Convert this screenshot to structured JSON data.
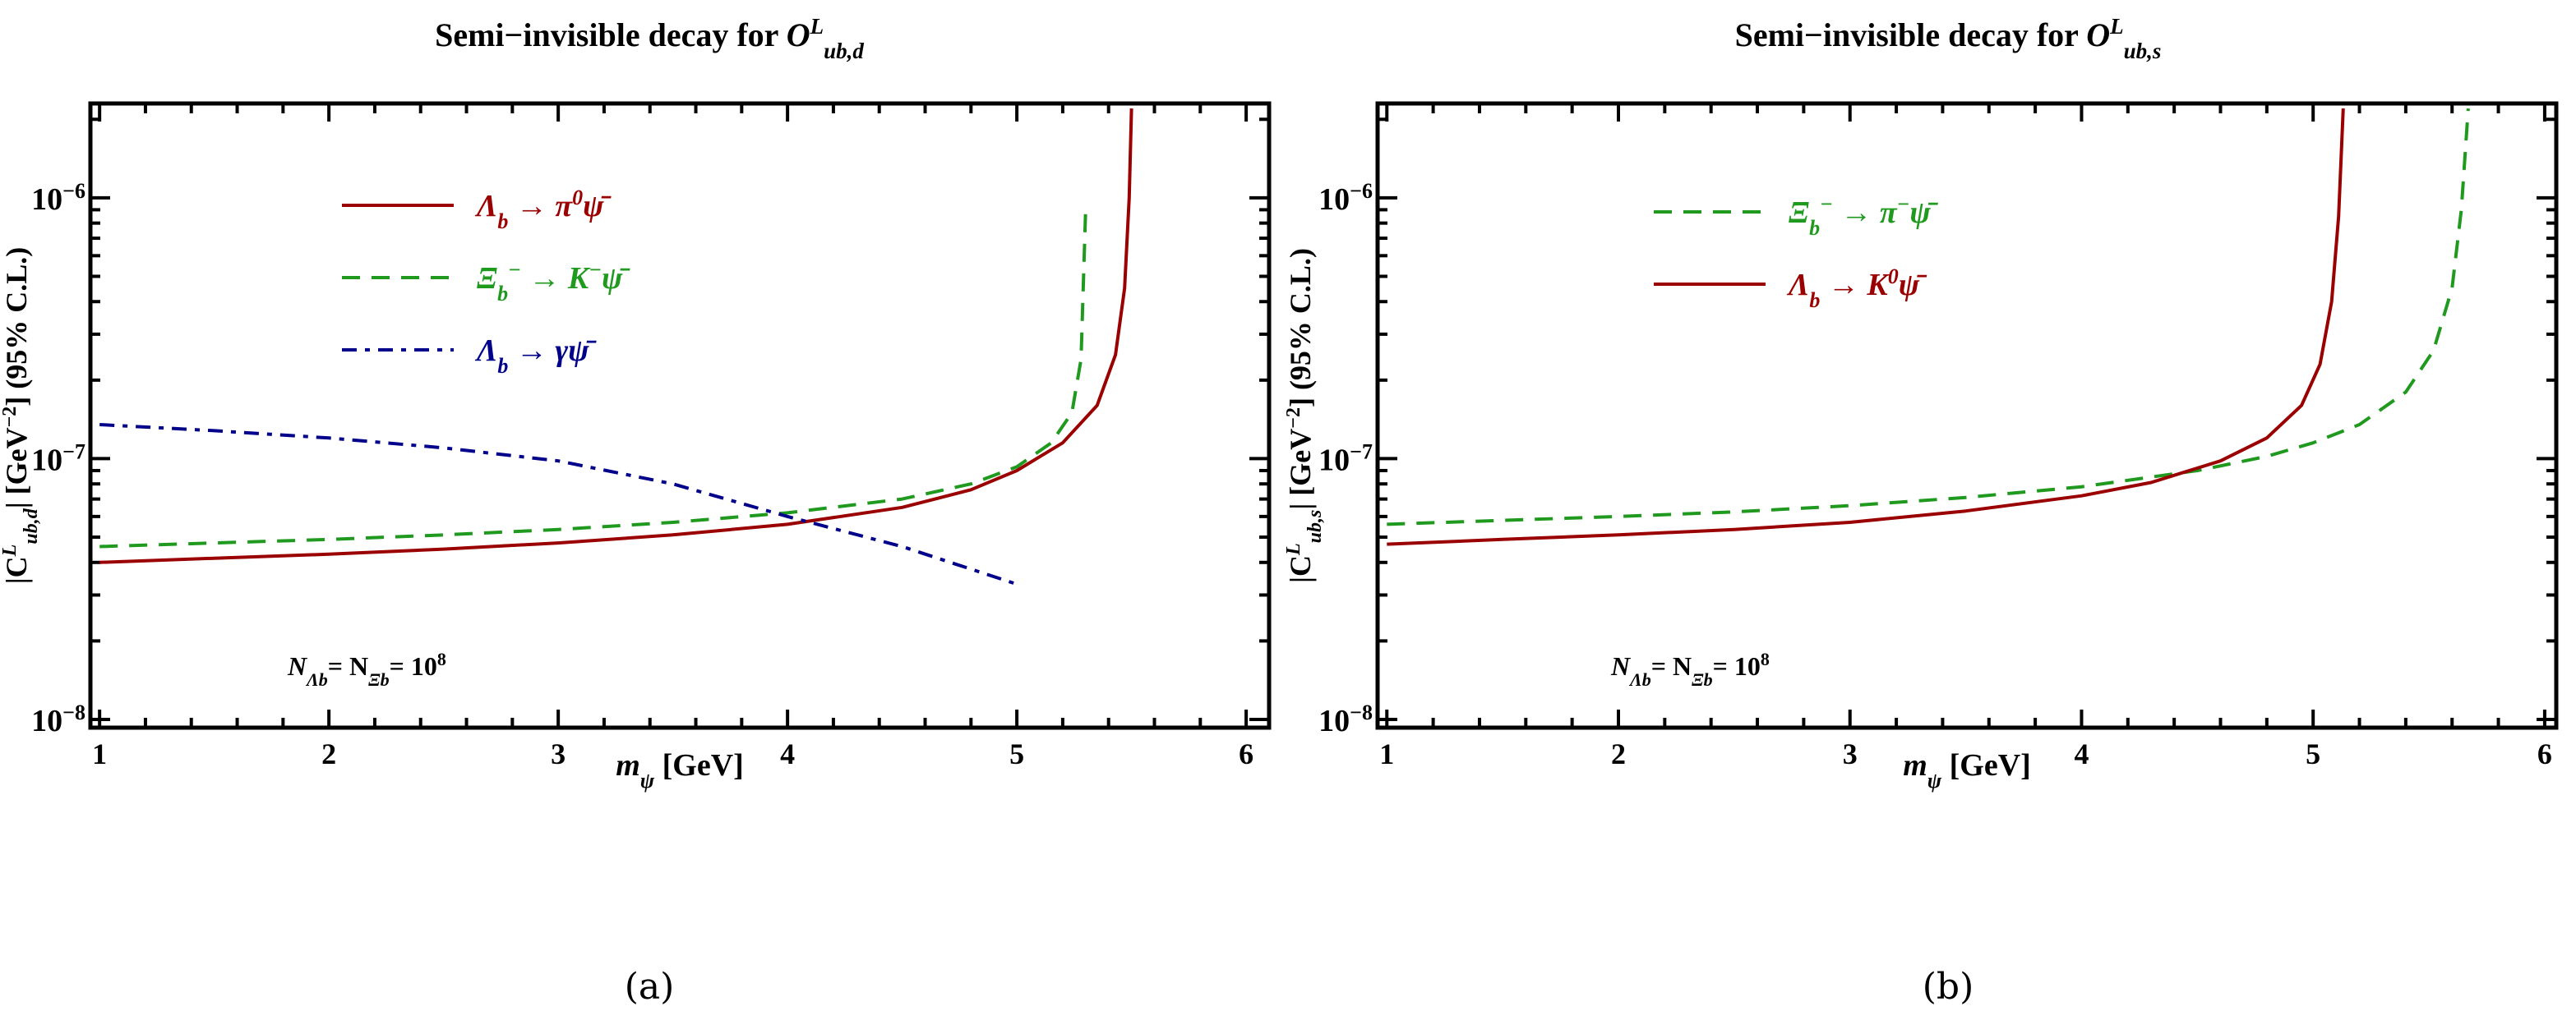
{
  "colors": {
    "red": "#9b0000",
    "green": "#1f9a1f",
    "blue": "#00008b",
    "axis": "#000000"
  },
  "chart_data": [
    {
      "type": "line",
      "panel": "a",
      "caption": "(a)",
      "title": {
        "prefix": "Semi−invisible decay for ",
        "op": "O",
        "sup": "L",
        "sub": "ub,d"
      },
      "xlabel": {
        "main": "m",
        "sub": "ψ",
        "rest": " [GeV]"
      },
      "ylabel": {
        "a": "|C",
        "sup": "L",
        "sub": "ub,d",
        "b": "| [GeV",
        "sup2": "−2",
        "c": "] (95% C.L.)"
      },
      "xlim": [
        0.96,
        6.1
      ],
      "ylim": [
        9.3e-09,
        2.3e-06
      ],
      "yscale": "log",
      "xticks": [
        "1",
        "2",
        "3",
        "4",
        "5",
        "6"
      ],
      "yticks": [
        {
          "base": "10",
          "exp": "−8",
          "value": 1e-08
        },
        {
          "base": "10",
          "exp": "−7",
          "value": 1e-07
        },
        {
          "base": "10",
          "exp": "−6",
          "value": 1e-06
        }
      ],
      "annotation": {
        "a": "N",
        "a_sub": "Λb",
        "eq": "= N",
        "b_sub": "Ξb",
        "eq2": "= 10",
        "exp": "8"
      },
      "legend_placement": "top-right",
      "series": [
        {
          "name": "Lambda_b -> pi0 psibar",
          "color": "red",
          "dash": "solid",
          "label": [
            {
              "t": "Λ"
            },
            {
              "t": "b",
              "s": "sub"
            },
            {
              "t": " → π"
            },
            {
              "t": "0",
              "s": "sup"
            },
            {
              "t": "ψ̄"
            }
          ],
          "x": [
            1,
            1.5,
            2,
            2.5,
            3,
            3.5,
            4,
            4.5,
            4.8,
            5,
            5.2,
            5.35,
            5.43,
            5.47,
            5.49,
            5.5
          ],
          "y": [
            4e-08,
            4.15e-08,
            4.3e-08,
            4.5e-08,
            4.75e-08,
            5.1e-08,
            5.6e-08,
            6.5e-08,
            7.6e-08,
            9e-08,
            1.15e-07,
            1.6e-07,
            2.5e-07,
            4.5e-07,
            1e-06,
            2.2e-06
          ]
        },
        {
          "name": "Xi_b- -> K- psibar",
          "color": "green",
          "dash": "dashed",
          "label": [
            {
              "t": "Ξ"
            },
            {
              "t": "b",
              "s": "sub"
            },
            {
              "t": "−",
              "s": "sup"
            },
            {
              "t": " → K"
            },
            {
              "t": "−",
              "s": "sup"
            },
            {
              "t": "ψ̄"
            }
          ],
          "x": [
            1,
            1.5,
            2,
            2.5,
            3,
            3.5,
            4,
            4.5,
            4.8,
            5,
            5.15,
            5.24,
            5.28,
            5.3
          ],
          "y": [
            4.6e-08,
            4.75e-08,
            4.9e-08,
            5.1e-08,
            5.35e-08,
            5.7e-08,
            6.2e-08,
            7e-08,
            8e-08,
            9.3e-08,
            1.15e-07,
            1.5e-07,
            2.4e-07,
            9e-07
          ]
        },
        {
          "name": "Lambda_b -> gamma psibar",
          "color": "blue",
          "dash": "dashdot",
          "label": [
            {
              "t": "Λ"
            },
            {
              "t": "b",
              "s": "sub"
            },
            {
              "t": " → γ"
            },
            {
              "t": "ψ̄"
            }
          ],
          "x": [
            1,
            1.5,
            2,
            2.5,
            3,
            3.5,
            4,
            4.5,
            5
          ],
          "y": [
            1.35e-07,
            1.28e-07,
            1.2e-07,
            1.1e-07,
            9.8e-08,
            8e-08,
            6e-08,
            4.6e-08,
            3.3e-08
          ]
        }
      ]
    },
    {
      "type": "line",
      "panel": "b",
      "caption": "(b)",
      "title": {
        "prefix": "Semi−invisible decay for ",
        "op": "O",
        "sup": "L",
        "sub": "ub,s"
      },
      "xlabel": {
        "main": "m",
        "sub": "ψ",
        "rest": " [GeV]"
      },
      "ylabel": {
        "a": "|C",
        "sup": "L",
        "sub": "ub,s",
        "b": "| [GeV",
        "sup2": "−2",
        "c": "] (95% C.L.)"
      },
      "xlim": [
        0.96,
        6.05
      ],
      "ylim": [
        9.3e-09,
        2.3e-06
      ],
      "yscale": "log",
      "xticks": [
        "1",
        "2",
        "3",
        "4",
        "5",
        "6"
      ],
      "yticks": [
        {
          "base": "10",
          "exp": "−8",
          "value": 1e-08
        },
        {
          "base": "10",
          "exp": "−7",
          "value": 1e-07
        },
        {
          "base": "10",
          "exp": "−6",
          "value": 1e-06
        }
      ],
      "annotation": {
        "a": "N",
        "a_sub": "Λb",
        "eq": "= N",
        "b_sub": "Ξb",
        "eq2": "= 10",
        "exp": "8"
      },
      "legend_placement": "top-right",
      "series": [
        {
          "name": "Xi_b- -> pi- psibar",
          "color": "green",
          "dash": "dashed",
          "label": [
            {
              "t": "Ξ"
            },
            {
              "t": "b",
              "s": "sub"
            },
            {
              "t": "−",
              "s": "sup"
            },
            {
              "t": " → π"
            },
            {
              "t": "−",
              "s": "sup"
            },
            {
              "t": "ψ̄"
            }
          ],
          "x": [
            1,
            1.5,
            2,
            2.5,
            3,
            3.5,
            4,
            4.5,
            4.8,
            5,
            5.2,
            5.4,
            5.52,
            5.6,
            5.64,
            5.67
          ],
          "y": [
            5.6e-08,
            5.8e-08,
            6e-08,
            6.25e-08,
            6.6e-08,
            7.1e-08,
            7.8e-08,
            9e-08,
            1.02e-07,
            1.15e-07,
            1.35e-07,
            1.8e-07,
            2.6e-07,
            4.5e-07,
            9e-07,
            2.2e-06
          ]
        },
        {
          "name": "Lambda_b -> K0 psibar",
          "color": "red",
          "dash": "solid",
          "label": [
            {
              "t": "Λ"
            },
            {
              "t": "b",
              "s": "sub"
            },
            {
              "t": " → K"
            },
            {
              "t": "0",
              "s": "sup"
            },
            {
              "t": "ψ̄"
            }
          ],
          "x": [
            1,
            1.5,
            2,
            2.5,
            3,
            3.5,
            4,
            4.3,
            4.6,
            4.8,
            4.95,
            5.03,
            5.08,
            5.11,
            5.13
          ],
          "y": [
            4.7e-08,
            4.9e-08,
            5.1e-08,
            5.35e-08,
            5.7e-08,
            6.3e-08,
            7.2e-08,
            8.1e-08,
            9.8e-08,
            1.2e-07,
            1.6e-07,
            2.3e-07,
            4e-07,
            8.5e-07,
            2.2e-06
          ]
        }
      ]
    }
  ]
}
